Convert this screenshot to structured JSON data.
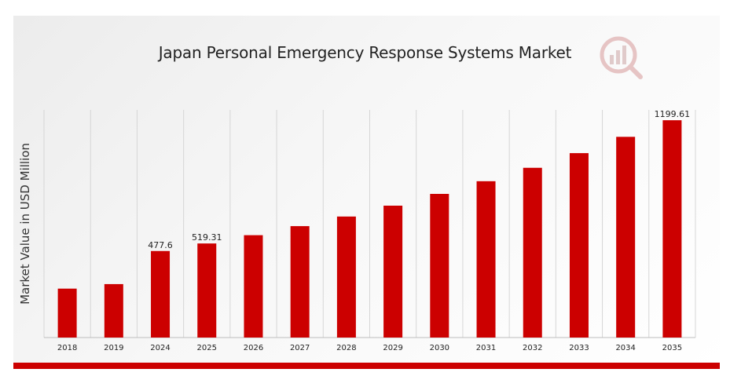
{
  "chart_data": {
    "type": "bar",
    "title": "Japan Personal Emergency Response Systems Market",
    "ylabel": "Market Value in USD Million",
    "xlabel": "",
    "categories": [
      "2018",
      "2019",
      "2024",
      "2025",
      "2026",
      "2027",
      "2028",
      "2029",
      "2030",
      "2031",
      "2032",
      "2033",
      "2034",
      "2035"
    ],
    "values": [
      270,
      295,
      477.6,
      519.31,
      565,
      615,
      668,
      728,
      793,
      863,
      937,
      1018,
      1108,
      1199.61
    ],
    "data_labels": [
      "",
      "",
      "477.6",
      "519.31",
      "",
      "",
      "",
      "",
      "",
      "",
      "",
      "",
      "",
      "1199.61"
    ],
    "ylim": [
      0,
      1300
    ],
    "grid": "vertical",
    "bar_color": "#cc0000"
  },
  "colors": {
    "accent": "#cc0000",
    "background": "#f2f2f2"
  },
  "logo": {
    "icon": "market-research-logo-icon"
  }
}
